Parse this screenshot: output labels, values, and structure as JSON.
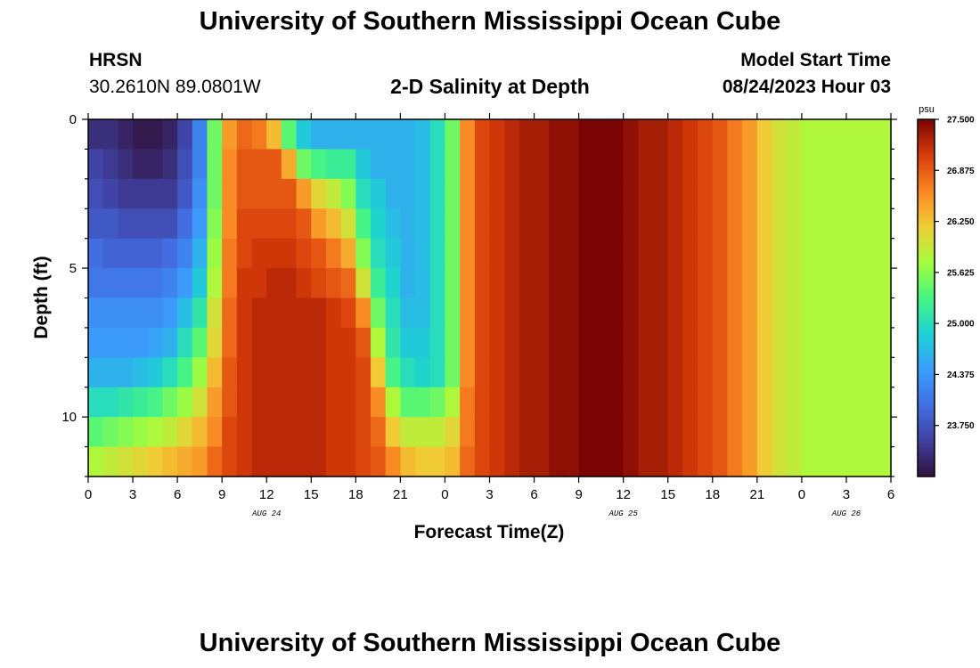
{
  "header": {
    "title": "University of Southern Mississippi Ocean Cube",
    "station": "HRSN",
    "coords": "30.2610N  89.0801W",
    "plot_title": "2-D Salinity at Depth",
    "model_start_label": "Model Start Time",
    "model_start_value": "08/24/2023 Hour 03"
  },
  "footer": {
    "title": "University of Southern Mississippi Ocean Cube"
  },
  "chart_data": {
    "type": "heatmap",
    "title": "2-D Salinity at Depth",
    "xlabel": "Forecast Time(Z)",
    "ylabel": "Depth (ft)",
    "units": "psu",
    "xlim_hours": [
      0,
      54
    ],
    "ylim_ft": [
      0,
      12
    ],
    "y_inverted": true,
    "x_tick_hours": [
      0,
      3,
      6,
      9,
      12,
      15,
      18,
      21,
      24,
      27,
      30,
      33,
      36,
      39,
      42,
      45,
      48,
      51,
      54
    ],
    "x_tick_labels": [
      "0",
      "3",
      "6",
      "9",
      "12",
      "15",
      "18",
      "21",
      "0",
      "3",
      "6",
      "9",
      "12",
      "15",
      "18",
      "21",
      "0",
      "3",
      "6"
    ],
    "y_ticks": [
      0,
      5,
      10
    ],
    "y_tick_labels": [
      "0",
      "5",
      "10"
    ],
    "date_labels": [
      {
        "hour": 12,
        "text": "AUG 24"
      },
      {
        "hour": 36,
        "text": "AUG 25"
      },
      {
        "hour": 51,
        "text": "AUG 26"
      }
    ],
    "colorbar": {
      "min": 23.125,
      "max": 27.5,
      "ticks": [
        27.5,
        26.875,
        26.25,
        25.625,
        25.0,
        24.375,
        23.75
      ],
      "tick_labels": [
        "27.500",
        "26.875",
        "26.250",
        "25.625",
        "25.000",
        "24.375",
        "23.750"
      ]
    },
    "depth_levels_ft": [
      0,
      1,
      2,
      3,
      4,
      5,
      6,
      7,
      8,
      9,
      10,
      11
    ],
    "salinity_psu_by_depth": [
      [
        23.4,
        23.4,
        23.3,
        23.2,
        23.2,
        23.3,
        23.6,
        24.2,
        25.5,
        26.5,
        26.8,
        26.7,
        26.3,
        25.4,
        24.8,
        24.6,
        24.6,
        24.6,
        24.6,
        24.6,
        24.6,
        24.6,
        24.7,
        25.0,
        25.5,
        26.6,
        27.0,
        27.1,
        27.2,
        27.3,
        27.3,
        27.4,
        27.4,
        27.5,
        27.5,
        27.5,
        27.4,
        27.3,
        27.3,
        27.2,
        27.1,
        27.0,
        26.9,
        26.7,
        26.5,
        26.2,
        26.0,
        25.9,
        25.8,
        25.8,
        25.8,
        25.8,
        25.8,
        25.8,
        25.8
      ],
      [
        23.6,
        23.5,
        23.4,
        23.3,
        23.3,
        23.4,
        23.7,
        24.2,
        25.5,
        26.6,
        26.9,
        26.9,
        26.9,
        26.4,
        25.5,
        25.3,
        25.2,
        25.2,
        24.8,
        24.6,
        24.6,
        24.6,
        24.7,
        25.0,
        25.5,
        26.6,
        27.0,
        27.1,
        27.2,
        27.3,
        27.3,
        27.4,
        27.4,
        27.5,
        27.5,
        27.5,
        27.4,
        27.3,
        27.3,
        27.2,
        27.1,
        27.0,
        26.9,
        26.7,
        26.5,
        26.2,
        26.0,
        25.9,
        25.8,
        25.8,
        25.8,
        25.8,
        25.8,
        25.8,
        25.8
      ],
      [
        23.7,
        23.6,
        23.5,
        23.5,
        23.5,
        23.5,
        23.8,
        24.3,
        25.5,
        26.6,
        26.9,
        26.9,
        26.9,
        26.9,
        26.5,
        26.1,
        25.9,
        25.6,
        25.0,
        24.8,
        24.6,
        24.6,
        24.7,
        25.0,
        25.5,
        26.6,
        27.0,
        27.1,
        27.2,
        27.3,
        27.3,
        27.4,
        27.4,
        27.5,
        27.5,
        27.5,
        27.4,
        27.3,
        27.3,
        27.2,
        27.1,
        27.0,
        26.9,
        26.7,
        26.5,
        26.2,
        26.0,
        25.9,
        25.8,
        25.8,
        25.8,
        25.8,
        25.8,
        25.8,
        25.8
      ],
      [
        23.8,
        23.8,
        23.7,
        23.7,
        23.7,
        23.7,
        24.0,
        24.4,
        25.6,
        26.6,
        27.0,
        27.0,
        27.0,
        27.0,
        26.9,
        26.5,
        26.3,
        26.0,
        25.3,
        24.9,
        24.7,
        24.6,
        24.7,
        25.0,
        25.5,
        26.6,
        27.0,
        27.1,
        27.2,
        27.3,
        27.3,
        27.4,
        27.4,
        27.5,
        27.5,
        27.5,
        27.4,
        27.3,
        27.3,
        27.2,
        27.1,
        27.0,
        26.9,
        26.7,
        26.5,
        26.2,
        26.0,
        25.9,
        25.8,
        25.8,
        25.8,
        25.8,
        25.8,
        25.8,
        25.8
      ],
      [
        24.0,
        23.9,
        23.9,
        23.9,
        23.9,
        24.0,
        24.2,
        24.6,
        25.7,
        26.7,
        27.0,
        27.1,
        27.1,
        27.1,
        27.0,
        26.9,
        26.7,
        26.4,
        25.6,
        25.0,
        24.8,
        24.6,
        24.7,
        25.0,
        25.5,
        26.6,
        27.0,
        27.1,
        27.2,
        27.3,
        27.3,
        27.4,
        27.4,
        27.5,
        27.5,
        27.5,
        27.4,
        27.3,
        27.3,
        27.2,
        27.1,
        27.0,
        26.9,
        26.7,
        26.5,
        26.2,
        26.0,
        25.9,
        25.8,
        25.8,
        25.8,
        25.8,
        25.8,
        25.8,
        25.8
      ],
      [
        24.1,
        24.1,
        24.1,
        24.1,
        24.1,
        24.2,
        24.4,
        24.8,
        25.8,
        26.7,
        27.1,
        27.1,
        27.2,
        27.2,
        27.1,
        27.0,
        26.9,
        26.8,
        26.0,
        25.2,
        24.9,
        24.6,
        24.7,
        25.0,
        25.5,
        26.6,
        27.0,
        27.1,
        27.2,
        27.3,
        27.3,
        27.4,
        27.4,
        27.5,
        27.5,
        27.5,
        27.4,
        27.3,
        27.3,
        27.2,
        27.1,
        27.0,
        26.9,
        26.7,
        26.5,
        26.2,
        26.0,
        25.9,
        25.8,
        25.8,
        25.8,
        25.8,
        25.8,
        25.8,
        25.8
      ],
      [
        24.3,
        24.3,
        24.3,
        24.3,
        24.3,
        24.4,
        24.7,
        25.1,
        26.0,
        26.8,
        27.1,
        27.2,
        27.2,
        27.2,
        27.2,
        27.2,
        27.1,
        27.0,
        26.6,
        25.5,
        25.0,
        24.7,
        24.7,
        25.0,
        25.5,
        26.6,
        27.0,
        27.1,
        27.2,
        27.3,
        27.3,
        27.4,
        27.4,
        27.5,
        27.5,
        27.5,
        27.4,
        27.3,
        27.3,
        27.2,
        27.1,
        27.0,
        26.9,
        26.7,
        26.5,
        26.2,
        26.0,
        25.9,
        25.8,
        25.8,
        25.8,
        25.8,
        25.8,
        25.8,
        25.8
      ],
      [
        24.4,
        24.4,
        24.4,
        24.4,
        24.5,
        24.6,
        25.0,
        25.4,
        26.1,
        26.8,
        27.1,
        27.2,
        27.2,
        27.2,
        27.2,
        27.2,
        27.1,
        27.1,
        26.9,
        25.8,
        25.1,
        24.8,
        24.8,
        25.0,
        25.5,
        26.6,
        27.0,
        27.1,
        27.2,
        27.3,
        27.3,
        27.4,
        27.4,
        27.5,
        27.5,
        27.5,
        27.4,
        27.3,
        27.3,
        27.2,
        27.1,
        27.0,
        26.9,
        26.7,
        26.5,
        26.2,
        26.0,
        25.9,
        25.8,
        25.8,
        25.8,
        25.8,
        25.8,
        25.8,
        25.8
      ],
      [
        24.6,
        24.6,
        24.6,
        24.7,
        24.8,
        25.0,
        25.3,
        25.7,
        26.3,
        26.9,
        27.1,
        27.2,
        27.2,
        27.2,
        27.2,
        27.2,
        27.1,
        27.1,
        27.0,
        26.2,
        25.3,
        25.0,
        24.9,
        25.0,
        25.5,
        26.6,
        27.0,
        27.1,
        27.2,
        27.3,
        27.3,
        27.4,
        27.4,
        27.5,
        27.5,
        27.5,
        27.4,
        27.3,
        27.3,
        27.2,
        27.1,
        27.0,
        26.9,
        26.7,
        26.5,
        26.2,
        26.0,
        25.9,
        25.8,
        25.8,
        25.8,
        25.8,
        25.8,
        25.8,
        25.8
      ],
      [
        25.0,
        25.0,
        25.1,
        25.2,
        25.3,
        25.5,
        25.7,
        26.0,
        26.5,
        26.9,
        27.1,
        27.2,
        27.2,
        27.2,
        27.2,
        27.2,
        27.1,
        27.1,
        27.0,
        26.6,
        25.8,
        25.4,
        25.4,
        25.5,
        25.8,
        26.7,
        27.0,
        27.1,
        27.2,
        27.3,
        27.3,
        27.4,
        27.4,
        27.5,
        27.5,
        27.5,
        27.4,
        27.3,
        27.3,
        27.2,
        27.1,
        27.0,
        26.9,
        26.7,
        26.5,
        26.2,
        26.0,
        25.9,
        25.8,
        25.8,
        25.8,
        25.8,
        25.8,
        25.8,
        25.8
      ],
      [
        25.4,
        25.5,
        25.6,
        25.7,
        25.8,
        25.9,
        26.1,
        26.3,
        26.6,
        27.0,
        27.1,
        27.2,
        27.2,
        27.2,
        27.2,
        27.2,
        27.1,
        27.1,
        27.0,
        26.8,
        26.2,
        25.9,
        25.9,
        25.9,
        26.1,
        26.7,
        27.0,
        27.1,
        27.2,
        27.3,
        27.3,
        27.4,
        27.4,
        27.5,
        27.5,
        27.5,
        27.4,
        27.3,
        27.3,
        27.2,
        27.1,
        27.0,
        26.9,
        26.7,
        26.5,
        26.2,
        26.0,
        25.9,
        25.8,
        25.8,
        25.8,
        25.8,
        25.8,
        25.8,
        25.8
      ],
      [
        25.8,
        25.9,
        26.0,
        26.1,
        26.2,
        26.3,
        26.4,
        26.5,
        26.8,
        27.0,
        27.1,
        27.2,
        27.2,
        27.2,
        27.2,
        27.2,
        27.1,
        27.1,
        27.0,
        26.9,
        26.6,
        26.3,
        26.2,
        26.2,
        26.3,
        26.8,
        27.0,
        27.1,
        27.2,
        27.3,
        27.3,
        27.4,
        27.4,
        27.5,
        27.5,
        27.5,
        27.4,
        27.3,
        27.3,
        27.2,
        27.1,
        27.0,
        26.9,
        26.7,
        26.5,
        26.2,
        26.0,
        25.9,
        25.8,
        25.8,
        25.8,
        25.8,
        25.8,
        25.8,
        25.8
      ]
    ]
  }
}
